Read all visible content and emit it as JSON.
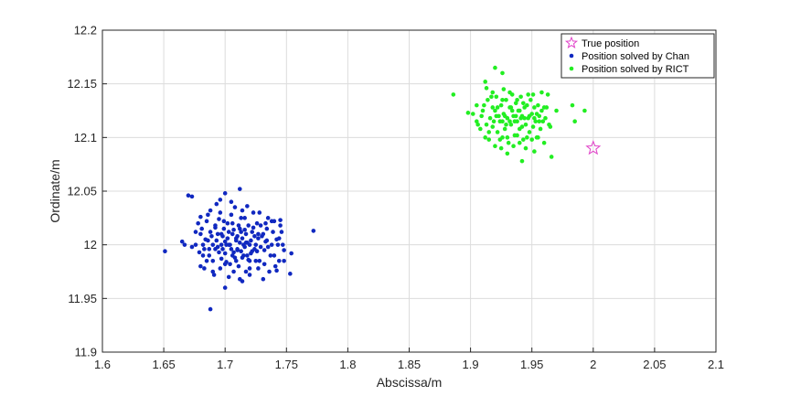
{
  "chart_data": {
    "type": "scatter",
    "title": "",
    "xlabel": "Abscissa/m",
    "ylabel": "Ordinate/m",
    "xlim": [
      1.6,
      2.1
    ],
    "ylim": [
      11.9,
      12.2
    ],
    "xticks": [
      "1.6",
      "1.65",
      "1.7",
      "1.75",
      "1.8",
      "1.85",
      "1.9",
      "1.95",
      "2",
      "2.05",
      "2.1"
    ],
    "yticks": [
      "11.9",
      "11.95",
      "12",
      "12.05",
      "12.1",
      "12.15",
      "12.2"
    ],
    "grid": true,
    "legend_position": "top-right",
    "series": [
      {
        "name": "True position",
        "marker": "star",
        "color": "#e040c8",
        "points": [
          [
            2.0,
            12.09
          ]
        ]
      },
      {
        "name": "Position solved by Chan",
        "marker": "dot",
        "color": "#1028c0",
        "points": [
          [
            1.651,
            11.994
          ],
          [
            1.665,
            12.003
          ],
          [
            1.667,
            12.0
          ],
          [
            1.67,
            12.046
          ],
          [
            1.673,
            12.045
          ],
          [
            1.688,
            11.94
          ],
          [
            1.772,
            12.013
          ],
          [
            1.753,
            11.973
          ],
          [
            1.754,
            11.992
          ],
          [
            1.745,
            12.023
          ],
          [
            1.74,
            12.022
          ],
          [
            1.735,
            12.025
          ],
          [
            1.7,
            12.048
          ],
          [
            1.712,
            12.052
          ],
          [
            1.7,
            11.96
          ],
          [
            1.714,
            11.966
          ],
          [
            1.678,
            12.02
          ],
          [
            1.68,
            12.01
          ],
          [
            1.682,
            11.99
          ],
          [
            1.684,
            12.005
          ],
          [
            1.686,
            12.028
          ],
          [
            1.688,
            12.012
          ],
          [
            1.69,
            11.985
          ],
          [
            1.692,
            12.018
          ],
          [
            1.694,
            11.998
          ],
          [
            1.696,
            12.03
          ],
          [
            1.698,
            12.008
          ],
          [
            1.7,
            11.992
          ],
          [
            1.702,
            12.02
          ],
          [
            1.704,
            11.982
          ],
          [
            1.706,
            12.01
          ],
          [
            1.708,
            12.035
          ],
          [
            1.71,
            11.995
          ],
          [
            1.712,
            12.015
          ],
          [
            1.714,
            11.988
          ],
          [
            1.716,
            12.025
          ],
          [
            1.718,
            12.002
          ],
          [
            1.72,
            11.978
          ],
          [
            1.722,
            12.012
          ],
          [
            1.724,
            11.996
          ],
          [
            1.726,
            12.02
          ],
          [
            1.728,
            11.985
          ],
          [
            1.73,
            12.008
          ],
          [
            1.732,
            11.995
          ],
          [
            1.734,
            12.015
          ],
          [
            1.736,
            11.975
          ],
          [
            1.738,
            12.0
          ],
          [
            1.74,
            11.99
          ],
          [
            1.742,
            12.005
          ],
          [
            1.744,
            11.985
          ],
          [
            1.746,
            12.012
          ],
          [
            1.748,
            11.995
          ],
          [
            1.676,
            12.0
          ],
          [
            1.679,
            11.993
          ],
          [
            1.681,
            12.015
          ],
          [
            1.683,
            11.978
          ],
          [
            1.685,
            12.022
          ],
          [
            1.687,
            11.996
          ],
          [
            1.689,
            12.008
          ],
          [
            1.691,
            11.972
          ],
          [
            1.693,
            12.004
          ],
          [
            1.695,
            12.024
          ],
          [
            1.697,
            11.987
          ],
          [
            1.699,
            12.015
          ],
          [
            1.701,
            12.0
          ],
          [
            1.703,
            11.97
          ],
          [
            1.705,
            12.028
          ],
          [
            1.707,
            11.993
          ],
          [
            1.709,
            12.006
          ],
          [
            1.711,
            11.98
          ],
          [
            1.713,
            12.012
          ],
          [
            1.715,
            12.0
          ],
          [
            1.717,
            11.975
          ],
          [
            1.719,
            12.018
          ],
          [
            1.721,
            11.992
          ],
          [
            1.723,
            12.03
          ],
          [
            1.725,
            11.985
          ],
          [
            1.727,
            12.006
          ],
          [
            1.729,
            11.998
          ],
          [
            1.731,
            11.968
          ],
          [
            1.733,
            12.003
          ],
          [
            1.737,
            11.99
          ],
          [
            1.739,
            12.012
          ],
          [
            1.741,
            11.98
          ],
          [
            1.743,
            12.0
          ],
          [
            1.7,
            12.003
          ],
          [
            1.705,
            11.996
          ],
          [
            1.71,
            12.008
          ],
          [
            1.715,
            11.99
          ],
          [
            1.72,
            12.0
          ],
          [
            1.703,
            12.012
          ],
          [
            1.708,
            11.988
          ],
          [
            1.712,
            12.002
          ],
          [
            1.717,
            12.01
          ],
          [
            1.722,
            11.994
          ],
          [
            1.694,
            12.01
          ],
          [
            1.698,
            11.996
          ],
          [
            1.702,
            12.006
          ],
          [
            1.706,
            11.99
          ],
          [
            1.711,
            12.018
          ],
          [
            1.716,
            11.998
          ],
          [
            1.721,
            12.004
          ],
          [
            1.726,
            11.994
          ],
          [
            1.731,
            12.01
          ],
          [
            1.69,
            12.0
          ],
          [
            1.695,
            11.993
          ],
          [
            1.699,
            12.022
          ],
          [
            1.704,
            12.0
          ],
          [
            1.709,
            11.985
          ],
          [
            1.713,
            12.025
          ],
          [
            1.718,
            11.99
          ],
          [
            1.724,
            12.008
          ],
          [
            1.729,
            12.018
          ],
          [
            1.686,
            12.004
          ],
          [
            1.692,
            11.996
          ],
          [
            1.697,
            12.0
          ],
          [
            1.701,
            11.984
          ],
          [
            1.707,
            12.014
          ],
          [
            1.714,
            12.006
          ],
          [
            1.719,
            11.986
          ],
          [
            1.725,
            12.0
          ],
          [
            1.734,
            12.004
          ],
          [
            1.68,
            12.026
          ],
          [
            1.683,
            11.996
          ],
          [
            1.688,
            12.032
          ],
          [
            1.693,
            12.038
          ],
          [
            1.696,
            12.042
          ],
          [
            1.705,
            12.04
          ],
          [
            1.718,
            12.036
          ],
          [
            1.728,
            12.03
          ],
          [
            1.733,
            12.02
          ],
          [
            1.738,
            12.022
          ],
          [
            1.745,
            12.018
          ],
          [
            1.68,
            11.98
          ],
          [
            1.685,
            11.985
          ],
          [
            1.69,
            11.975
          ],
          [
            1.696,
            11.978
          ],
          [
            1.707,
            11.975
          ],
          [
            1.712,
            11.968
          ],
          [
            1.72,
            11.972
          ],
          [
            1.727,
            11.978
          ],
          [
            1.732,
            11.982
          ],
          [
            1.742,
            11.976
          ],
          [
            1.748,
            11.985
          ],
          [
            1.697,
            12.01
          ],
          [
            1.703,
            12.0
          ],
          [
            1.709,
            12.004
          ],
          [
            1.713,
            11.994
          ],
          [
            1.717,
            12.002
          ],
          [
            1.723,
            12.016
          ],
          [
            1.727,
            12.01
          ],
          [
            1.735,
            11.998
          ],
          [
            1.7,
            11.982
          ],
          [
            1.706,
            12.02
          ],
          [
            1.714,
            12.032
          ],
          [
            1.692,
            12.016
          ],
          [
            1.687,
            11.99
          ],
          [
            1.682,
            12.0
          ],
          [
            1.673,
            11.998
          ],
          [
            1.676,
            12.012
          ],
          [
            1.744,
            12.006
          ],
          [
            1.747,
            12.0
          ],
          [
            1.71,
            11.996
          ],
          [
            1.716,
            12.014
          ],
          [
            1.72,
            11.985
          ]
        ]
      },
      {
        "name": "Position solved by RICT",
        "marker": "dot",
        "color": "#22ee22",
        "points": [
          [
            1.886,
            12.14
          ],
          [
            1.912,
            12.152
          ],
          [
            1.913,
            12.146
          ],
          [
            1.92,
            12.165
          ],
          [
            1.926,
            12.16
          ],
          [
            1.983,
            12.13
          ],
          [
            1.985,
            12.115
          ],
          [
            1.993,
            12.125
          ],
          [
            1.966,
            12.082
          ],
          [
            1.952,
            12.087
          ],
          [
            1.942,
            12.078
          ],
          [
            1.96,
            12.095
          ],
          [
            1.955,
            12.1
          ],
          [
            1.965,
            12.11
          ],
          [
            1.97,
            12.125
          ],
          [
            1.963,
            12.14
          ],
          [
            1.958,
            12.142
          ],
          [
            1.898,
            12.123
          ],
          [
            1.902,
            12.122
          ],
          [
            1.905,
            12.115
          ],
          [
            1.905,
            12.13
          ],
          [
            1.908,
            12.108
          ],
          [
            1.91,
            12.125
          ],
          [
            1.912,
            12.1
          ],
          [
            1.914,
            12.135
          ],
          [
            1.916,
            12.118
          ],
          [
            1.918,
            12.128
          ],
          [
            1.918,
            12.11
          ],
          [
            1.92,
            12.125
          ],
          [
            1.921,
            12.138
          ],
          [
            1.922,
            12.105
          ],
          [
            1.923,
            12.12
          ],
          [
            1.924,
            12.115
          ],
          [
            1.925,
            12.13
          ],
          [
            1.926,
            12.1
          ],
          [
            1.927,
            12.122
          ],
          [
            1.928,
            12.108
          ],
          [
            1.929,
            12.135
          ],
          [
            1.93,
            12.118
          ],
          [
            1.931,
            12.095
          ],
          [
            1.932,
            12.128
          ],
          [
            1.933,
            12.112
          ],
          [
            1.934,
            12.14
          ],
          [
            1.935,
            12.12
          ],
          [
            1.936,
            12.102
          ],
          [
            1.937,
            12.132
          ],
          [
            1.938,
            12.115
          ],
          [
            1.939,
            12.125
          ],
          [
            1.94,
            12.108
          ],
          [
            1.941,
            12.138
          ],
          [
            1.942,
            12.12
          ],
          [
            1.943,
            12.098
          ],
          [
            1.944,
            12.128
          ],
          [
            1.945,
            12.112
          ],
          [
            1.946,
            12.13
          ],
          [
            1.947,
            12.118
          ],
          [
            1.948,
            12.105
          ],
          [
            1.949,
            12.135
          ],
          [
            1.95,
            12.122
          ],
          [
            1.951,
            12.11
          ],
          [
            1.952,
            12.128
          ],
          [
            1.953,
            12.115
          ],
          [
            1.954,
            12.1
          ],
          [
            1.955,
            12.13
          ],
          [
            1.956,
            12.12
          ],
          [
            1.957,
            12.108
          ],
          [
            1.958,
            12.125
          ],
          [
            1.959,
            12.115
          ],
          [
            1.961,
            12.118
          ],
          [
            1.962,
            12.128
          ],
          [
            1.964,
            12.112
          ],
          [
            1.906,
            12.112
          ],
          [
            1.909,
            12.12
          ],
          [
            1.911,
            12.13
          ],
          [
            1.913,
            12.112
          ],
          [
            1.915,
            12.098
          ],
          [
            1.917,
            12.138
          ],
          [
            1.919,
            12.115
          ],
          [
            1.922,
            12.128
          ],
          [
            1.924,
            12.098
          ],
          [
            1.926,
            12.135
          ],
          [
            1.928,
            12.12
          ],
          [
            1.93,
            12.1
          ],
          [
            1.932,
            12.115
          ],
          [
            1.934,
            12.125
          ],
          [
            1.936,
            12.115
          ],
          [
            1.938,
            12.135
          ],
          [
            1.94,
            12.125
          ],
          [
            1.942,
            12.11
          ],
          [
            1.944,
            12.118
          ],
          [
            1.946,
            12.1
          ],
          [
            1.948,
            12.12
          ],
          [
            1.95,
            12.098
          ],
          [
            1.952,
            12.118
          ],
          [
            1.954,
            12.122
          ],
          [
            1.956,
            12.115
          ],
          [
            1.925,
            12.09
          ],
          [
            1.93,
            12.085
          ],
          [
            1.935,
            12.092
          ],
          [
            1.94,
            12.095
          ],
          [
            1.945,
            12.09
          ],
          [
            1.92,
            12.092
          ],
          [
            1.915,
            12.105
          ],
          [
            1.938,
            12.102
          ],
          [
            1.943,
            12.132
          ],
          [
            1.947,
            12.14
          ],
          [
            1.932,
            12.142
          ],
          [
            1.927,
            12.145
          ],
          [
            1.918,
            12.142
          ],
          [
            1.937,
            12.12
          ],
          [
            1.929,
            12.112
          ],
          [
            1.941,
            12.118
          ],
          [
            1.933,
            12.128
          ],
          [
            1.96,
            12.128
          ],
          [
            1.951,
            12.14
          ],
          [
            1.926,
            12.115
          ],
          [
            1.921,
            12.12
          ]
        ]
      }
    ]
  }
}
